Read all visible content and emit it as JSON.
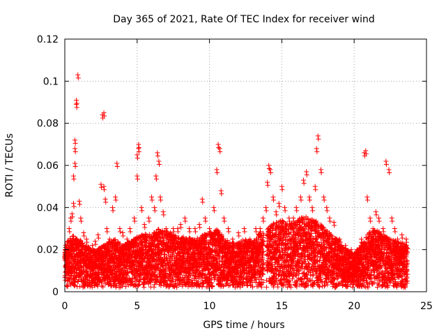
{
  "chart_data": {
    "type": "scatter",
    "title": "Day 365 of 2021, Rate Of TEC Index for receiver wind",
    "xlabel": "GPS time / hours",
    "ylabel": "ROTI / TECUs",
    "xlim": [
      0,
      25
    ],
    "ylim": [
      0,
      0.12
    ],
    "xticks": [
      0,
      5,
      10,
      15,
      20,
      25
    ],
    "xtick_labels": [
      "0",
      "5",
      "10",
      "15",
      "20",
      "25"
    ],
    "yticks": [
      0,
      0.02,
      0.04,
      0.06,
      0.08,
      0.1,
      0.12
    ],
    "ytick_labels": [
      "0",
      "0.02",
      "0.04",
      "0.06",
      "0.08",
      "0.1",
      "0.12"
    ],
    "grid": true,
    "marker": "+",
    "color": "#ff0000",
    "series": [
      {
        "name": "ROTI",
        "x": [
          0.1,
          0.2,
          0.3,
          0.4,
          0.5,
          0.6,
          0.6,
          0.7,
          0.7,
          0.7,
          0.8,
          0.8,
          0.9,
          1.0,
          1.1,
          1.3,
          1.5,
          1.7,
          1.9,
          2.1,
          2.3,
          2.5,
          2.6,
          2.7,
          2.7,
          2.8,
          2.9,
          3.1,
          3.3,
          3.5,
          3.6,
          3.8,
          4.0,
          4.3,
          4.5,
          4.8,
          5.0,
          5.0,
          5.1,
          5.1,
          5.3,
          5.5,
          5.8,
          6.0,
          6.2,
          6.3,
          6.4,
          6.5,
          6.6,
          6.8,
          7.0,
          7.3,
          7.5,
          7.8,
          8.0,
          8.3,
          8.6,
          9.0,
          9.3,
          9.5,
          9.7,
          10.0,
          10.3,
          10.5,
          10.6,
          10.7,
          10.8,
          11.0,
          11.3,
          11.6,
          12.0,
          12.4,
          12.8,
          13.2,
          13.5,
          13.7,
          13.9,
          14.0,
          14.1,
          14.2,
          14.4,
          14.6,
          14.8,
          15.0,
          15.2,
          15.5,
          15.8,
          16.0,
          16.3,
          16.5,
          16.7,
          16.9,
          17.1,
          17.3,
          17.4,
          17.5,
          17.7,
          17.9,
          18.1,
          18.3,
          18.6,
          19.0,
          19.4,
          19.8,
          20.2,
          20.5,
          20.7,
          20.8,
          20.9,
          21.1,
          21.3,
          21.5,
          21.7,
          22.0,
          22.2,
          22.4,
          22.6,
          22.8,
          23.0,
          23.3,
          23.6
        ],
        "y": [
          0.021,
          0.024,
          0.03,
          0.035,
          0.037,
          0.042,
          0.055,
          0.061,
          0.068,
          0.072,
          0.089,
          0.091,
          0.103,
          0.043,
          0.035,
          0.028,
          0.025,
          0.02,
          0.022,
          0.024,
          0.027,
          0.051,
          0.084,
          0.085,
          0.05,
          0.044,
          0.03,
          0.025,
          0.04,
          0.045,
          0.061,
          0.03,
          0.028,
          0.025,
          0.03,
          0.035,
          0.055,
          0.065,
          0.068,
          0.07,
          0.04,
          0.032,
          0.035,
          0.045,
          0.04,
          0.055,
          0.066,
          0.062,
          0.045,
          0.038,
          0.03,
          0.028,
          0.03,
          0.03,
          0.032,
          0.035,
          0.03,
          0.03,
          0.032,
          0.044,
          0.035,
          0.03,
          0.04,
          0.058,
          0.07,
          0.068,
          0.048,
          0.035,
          0.03,
          0.025,
          0.028,
          0.03,
          0.025,
          0.03,
          0.03,
          0.035,
          0.04,
          0.052,
          0.06,
          0.058,
          0.045,
          0.038,
          0.042,
          0.05,
          0.04,
          0.035,
          0.035,
          0.04,
          0.045,
          0.053,
          0.057,
          0.045,
          0.04,
          0.05,
          0.068,
          0.074,
          0.058,
          0.045,
          0.04,
          0.035,
          0.033,
          0.025,
          0.022,
          0.02,
          0.02,
          0.025,
          0.066,
          0.067,
          0.045,
          0.035,
          0.03,
          0.038,
          0.035,
          0.03,
          0.062,
          0.058,
          0.035,
          0.03,
          0.025,
          0.027,
          0.025
        ]
      }
    ],
    "band_upper": [
      [
        0,
        0.022
      ],
      [
        0.5,
        0.027
      ],
      [
        1.0,
        0.025
      ],
      [
        1.5,
        0.022
      ],
      [
        2.0,
        0.02
      ],
      [
        2.5,
        0.021
      ],
      [
        3.0,
        0.024
      ],
      [
        3.5,
        0.025
      ],
      [
        4.0,
        0.022
      ],
      [
        4.5,
        0.024
      ],
      [
        5.0,
        0.026
      ],
      [
        5.5,
        0.028
      ],
      [
        6.0,
        0.027
      ],
      [
        6.5,
        0.03
      ],
      [
        7.0,
        0.029
      ],
      [
        7.5,
        0.027
      ],
      [
        8.0,
        0.026
      ],
      [
        8.5,
        0.026
      ],
      [
        9.0,
        0.025
      ],
      [
        9.5,
        0.027
      ],
      [
        10.0,
        0.028
      ],
      [
        10.5,
        0.03
      ],
      [
        11.0,
        0.026
      ],
      [
        11.5,
        0.023
      ],
      [
        12.0,
        0.024
      ],
      [
        12.5,
        0.025
      ],
      [
        13.0,
        0.024
      ],
      [
        13.5,
        0.028
      ],
      [
        13.8,
        0.028
      ],
      [
        14.0,
        0.03
      ],
      [
        14.5,
        0.033
      ],
      [
        15.0,
        0.034
      ],
      [
        15.5,
        0.032
      ],
      [
        16.0,
        0.034
      ],
      [
        16.5,
        0.036
      ],
      [
        17.0,
        0.035
      ],
      [
        17.5,
        0.033
      ],
      [
        18.0,
        0.03
      ],
      [
        18.5,
        0.027
      ],
      [
        19.0,
        0.024
      ],
      [
        19.5,
        0.02
      ],
      [
        20.0,
        0.018
      ],
      [
        20.5,
        0.023
      ],
      [
        21.0,
        0.028
      ],
      [
        21.5,
        0.03
      ],
      [
        22.0,
        0.027
      ],
      [
        22.5,
        0.025
      ],
      [
        23.0,
        0.024
      ],
      [
        23.7,
        0.022
      ]
    ]
  }
}
